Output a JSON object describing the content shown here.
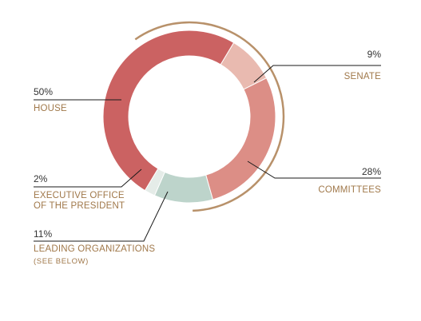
{
  "chart_data": {
    "type": "donut",
    "colors": {
      "label": "#a0784a",
      "leader": "#1a1a1a",
      "outer_ring": "#b8916a"
    },
    "slices": [
      {
        "key": "senate",
        "percent_label": "9%",
        "category": "SENATE",
        "value": 9,
        "color": "#e9bab0"
      },
      {
        "key": "committees",
        "percent_label": "28%",
        "category": "COMMITTEES",
        "value": 28,
        "color": "#dc8e86"
      },
      {
        "key": "leading_organizations",
        "percent_label": "11%",
        "category": "LEADING ORGANIZATIONS",
        "category_note": "(SEE BELOW)",
        "value": 11,
        "color": "#bdd4cb"
      },
      {
        "key": "executive_office",
        "percent_label": "2%",
        "category": "EXECUTIVE OFFICE",
        "category_line2": "OF THE PRESIDENT",
        "value": 2,
        "color": "#e5ece8"
      },
      {
        "key": "house",
        "percent_label": "50%",
        "category": "HOUSE",
        "value": 50,
        "color": "#cb6262"
      }
    ]
  }
}
